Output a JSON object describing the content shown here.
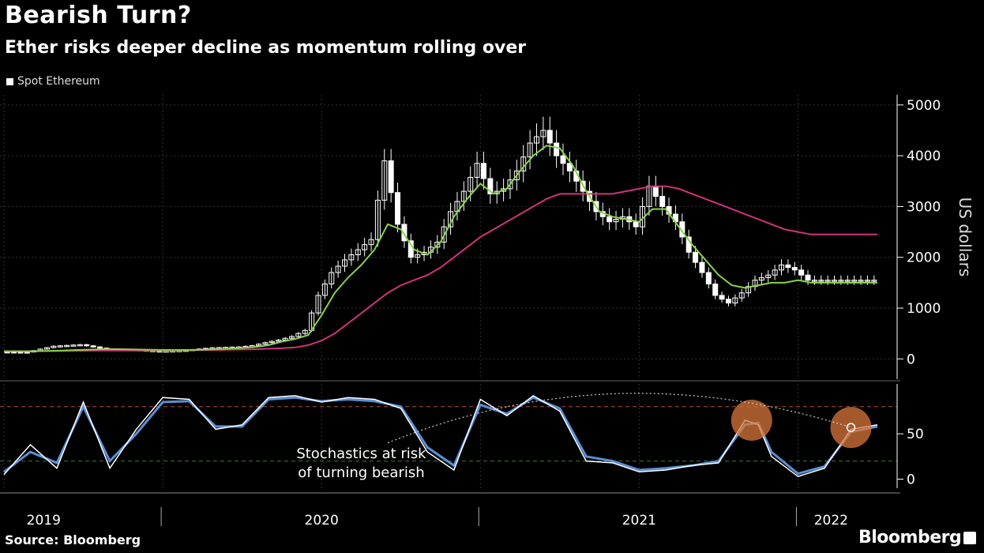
{
  "title": "Bearish Turn?",
  "subtitle": "Ether risks deeper decline as momentum rolling over",
  "source": "Source: Bloomberg",
  "brand": "Bloomberg",
  "colors": {
    "background": "#000000",
    "candle": "#ffffff",
    "ma_short": "#8bd14a",
    "ma_long": "#d0337a",
    "stoch_k": "#ffffff",
    "stoch_d": "#5b8fd6",
    "highlight": "#d9773a"
  },
  "chart_data": [
    {
      "type": "line",
      "title": "Spot Ethereum",
      "legend": [
        "Spot Ethereum"
      ],
      "ylabel": "US dollars",
      "ylim": [
        -400,
        5200
      ],
      "yticks": [
        0,
        1000,
        2000,
        3000,
        4000,
        5000
      ],
      "x_tick_labels": [
        "2019",
        "2020",
        "2021",
        "2022"
      ],
      "x_unit": "months since Jan 2019",
      "x": [
        0,
        2,
        4,
        6,
        8,
        10,
        12,
        14,
        16,
        18,
        19,
        20,
        21,
        22,
        23,
        24,
        25,
        26,
        27,
        28,
        29,
        30,
        31,
        32,
        33,
        34,
        35,
        36,
        37,
        38,
        39,
        40,
        41,
        42,
        43,
        44,
        45,
        46,
        47,
        48,
        49,
        50,
        51,
        52,
        53,
        54,
        55,
        56,
        57,
        58,
        59,
        60,
        61,
        62,
        63,
        64,
        65,
        66
      ],
      "series": [
        {
          "name": "Spot Ethereum",
          "values": [
            140,
            135,
            250,
            280,
            190,
            180,
            150,
            170,
            220,
            235,
            260,
            320,
            370,
            440,
            560,
            1250,
            1700,
            1950,
            2150,
            2350,
            3900,
            2650,
            2000,
            2100,
            2300,
            2900,
            3300,
            3850,
            3250,
            3350,
            3700,
            4250,
            4500,
            4000,
            3700,
            3300,
            2900,
            2700,
            2800,
            2600,
            3400,
            3000,
            2700,
            2100,
            1700,
            1250,
            1100,
            1300,
            1550,
            1650,
            1850,
            1750,
            1550,
            1550,
            1550,
            1550,
            1550,
            1550
          ]
        },
        {
          "name": "",
          "values": [
            150,
            150,
            160,
            180,
            195,
            185,
            175,
            175,
            190,
            215,
            235,
            270,
            340,
            390,
            470,
            860,
            1300,
            1600,
            1850,
            2150,
            2650,
            2550,
            2150,
            2050,
            2300,
            2800,
            3150,
            3450,
            3250,
            3350,
            3700,
            4000,
            4200,
            4150,
            3800,
            3300,
            2900,
            2800,
            2750,
            2700,
            2950,
            2950,
            2600,
            2250,
            1950,
            1650,
            1450,
            1400,
            1450,
            1500,
            1500,
            1550,
            1500,
            1500,
            1500,
            1500,
            1500,
            1500
          ]
        },
        {
          "name": "",
          "values": [
            150,
            150,
            155,
            160,
            165,
            165,
            165,
            170,
            175,
            185,
            190,
            200,
            210,
            225,
            270,
            360,
            500,
            700,
            900,
            1100,
            1300,
            1450,
            1550,
            1650,
            1800,
            2000,
            2200,
            2400,
            2550,
            2700,
            2850,
            3000,
            3150,
            3250,
            3250,
            3250,
            3250,
            3250,
            3300,
            3350,
            3400,
            3400,
            3350,
            3250,
            3150,
            3050,
            2950,
            2850,
            2750,
            2650,
            2550,
            2500,
            2450,
            2450,
            2450,
            2450,
            2450,
            2450
          ]
        }
      ]
    },
    {
      "type": "line",
      "title": "",
      "ylim": [
        -10,
        105
      ],
      "yticks": [
        0,
        50
      ],
      "reference_lines": [
        80,
        20
      ],
      "annotation": [
        "Stochastics at risk",
        "of turning bearish"
      ],
      "highlights": [
        {
          "x": 56.5,
          "y": 65
        },
        {
          "x": 64,
          "y": 57
        }
      ],
      "x": [
        0,
        2,
        4,
        6,
        8,
        10,
        12,
        14,
        16,
        18,
        20,
        22,
        24,
        26,
        28,
        30,
        32,
        34,
        36,
        38,
        40,
        42,
        44,
        46,
        48,
        50,
        52,
        54,
        56,
        57,
        58,
        60,
        62,
        64,
        66
      ],
      "series": [
        {
          "name": "",
          "values": [
            5,
            38,
            12,
            85,
            12,
            55,
            90,
            88,
            55,
            60,
            90,
            92,
            85,
            90,
            88,
            78,
            30,
            10,
            88,
            70,
            92,
            75,
            20,
            18,
            8,
            10,
            15,
            18,
            65,
            60,
            25,
            3,
            12,
            55,
            60
          ]
        },
        {
          "name": "",
          "values": [
            8,
            30,
            18,
            80,
            20,
            50,
            85,
            86,
            58,
            58,
            88,
            90,
            86,
            88,
            86,
            80,
            35,
            15,
            82,
            72,
            90,
            78,
            25,
            20,
            10,
            12,
            15,
            20,
            60,
            62,
            30,
            6,
            14,
            52,
            58
          ]
        }
      ]
    }
  ]
}
